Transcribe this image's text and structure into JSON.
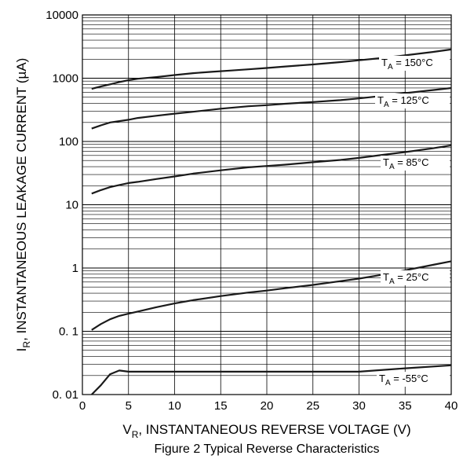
{
  "chart_data": {
    "type": "line",
    "caption": "Figure 2 Typical Reverse Characteristics",
    "xlabel": {
      "main": "V",
      "sub": "R",
      "rest": ", INSTANTANEOUS REVERSE VOLTAGE (V)"
    },
    "ylabel": {
      "main": "I",
      "sub": "R",
      "rest": ", INSTANTANEOUS LEAKAGE CURRENT (µA)"
    },
    "xlim": [
      0,
      40
    ],
    "ylim": [
      0.01,
      10000
    ],
    "yscale": "log",
    "grid": true,
    "x_ticks": [
      0,
      5,
      10,
      15,
      20,
      25,
      30,
      35,
      40
    ],
    "x_tick_labels": [
      "0",
      "5",
      "10",
      "15",
      "20",
      "25",
      "30",
      "35",
      "40"
    ],
    "y_ticks": [
      0.01,
      0.1,
      1,
      10,
      100,
      1000,
      10000
    ],
    "y_tick_labels": [
      "0. 01",
      "0. 1",
      "1",
      "10",
      "100",
      "1000",
      "10000"
    ],
    "series": [
      {
        "name": "T_A = 150°C",
        "label_main": "T",
        "label_sub": "A",
        "label_rest": " = 150°C",
        "x": [
          1,
          2,
          3,
          4,
          5,
          6,
          8,
          10,
          12,
          14,
          16,
          18,
          20,
          22,
          25,
          28,
          30,
          32,
          35,
          38,
          40
        ],
        "y": [
          680,
          740,
          800,
          870,
          930,
          980,
          1040,
          1120,
          1200,
          1260,
          1320,
          1380,
          1450,
          1530,
          1650,
          1800,
          1920,
          2050,
          2300,
          2600,
          2850
        ]
      },
      {
        "name": "T_A = 125°C",
        "label_main": "T",
        "label_sub": "A",
        "label_rest": " = 125°C",
        "x": [
          1,
          2,
          3,
          4,
          5,
          6,
          8,
          10,
          12,
          15,
          18,
          20,
          22,
          25,
          28,
          30,
          32,
          35,
          38,
          40
        ],
        "y": [
          160,
          180,
          200,
          210,
          220,
          235,
          255,
          275,
          295,
          330,
          360,
          375,
          395,
          420,
          450,
          480,
          515,
          580,
          650,
          700
        ]
      },
      {
        "name": "T_A = 85°C",
        "label_main": "T",
        "label_sub": "A",
        "label_rest": " = 85°C",
        "x": [
          1,
          2,
          3,
          4,
          5,
          6,
          8,
          10,
          12,
          15,
          18,
          20,
          22,
          25,
          28,
          30,
          32,
          35,
          38,
          40
        ],
        "y": [
          15,
          17,
          19,
          20.5,
          22,
          23,
          25.5,
          28,
          31,
          35,
          39,
          41,
          43,
          47,
          51,
          55,
          60,
          68,
          78,
          87
        ]
      },
      {
        "name": "T_A = 25°C",
        "label_main": "T",
        "label_sub": "A",
        "label_rest": " = 25°C",
        "x": [
          1,
          2,
          3,
          4,
          5,
          6,
          8,
          10,
          12,
          15,
          18,
          20,
          22,
          25,
          28,
          30,
          32,
          35,
          38,
          40
        ],
        "y": [
          0.105,
          0.13,
          0.155,
          0.175,
          0.19,
          0.205,
          0.24,
          0.275,
          0.31,
          0.36,
          0.41,
          0.44,
          0.48,
          0.54,
          0.62,
          0.68,
          0.76,
          0.92,
          1.12,
          1.28
        ]
      },
      {
        "name": "T_A = -55°C",
        "label_main": "T",
        "label_sub": "A",
        "label_rest": " = -55°C",
        "x": [
          1,
          2,
          3,
          4,
          5,
          10,
          15,
          20,
          25,
          30,
          35,
          40
        ],
        "y": [
          0.01,
          0.014,
          0.021,
          0.024,
          0.023,
          0.023,
          0.023,
          0.023,
          0.023,
          0.023,
          0.026,
          0.029
        ]
      }
    ]
  }
}
